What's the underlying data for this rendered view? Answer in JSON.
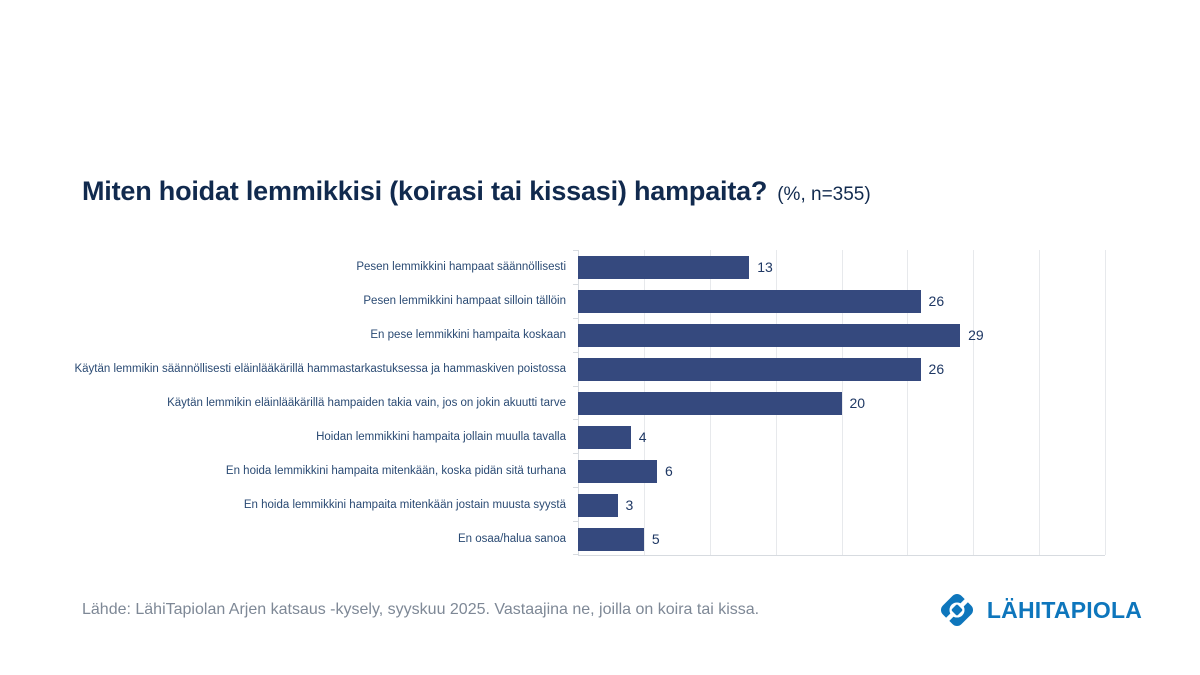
{
  "chart_data": {
    "type": "bar",
    "orientation": "horizontal",
    "title": "Miten hoidat lemmikkisi (koirasi tai kissasi) hampaita?",
    "subtitle": "(%, n=355)",
    "categories": [
      "Pesen lemmikkini hampaat säännöllisesti",
      "Pesen lemmikkini hampaat silloin tällöin",
      "En pese lemmikkini hampaita koskaan",
      "Käytän lemmikin säännöllisesti eläinlääkärillä hammastarkastuksessa ja hammaskiven poistossa",
      "Käytän lemmikin eläinlääkärillä hampaiden takia vain, jos on jokin akuutti tarve",
      "Hoidan lemmikkini hampaita jollain muulla tavalla",
      "En hoida lemmikkini hampaita mitenkään, koska pidän sitä turhana",
      "En hoida lemmikkini hampaita mitenkään jostain muusta syystä",
      "En osaa/halua sanoa"
    ],
    "values": [
      13,
      26,
      29,
      26,
      20,
      4,
      6,
      3,
      5
    ],
    "xlabel": "",
    "ylabel": "",
    "xlim": [
      0,
      40
    ],
    "grid_step": 5,
    "grid": true,
    "legend": false,
    "value_labels": true
  },
  "footer": {
    "source": "Lähde: LähiTapiolan Arjen katsaus -kysely, syyskuu 2025. Vastaajina ne, joilla on koira tai kissa."
  },
  "logo": {
    "text": "LÄHITAPIOLA"
  },
  "colors": {
    "bar": "#35497E",
    "title": "#112A4E",
    "category_label": "#2A4A73",
    "value_label": "#1F3864",
    "grid": "#E7E9EC",
    "axis": "#D7DBE0",
    "footer": "#7E8896",
    "logo_blue": "#0E76BC",
    "background": "#FFFFFF"
  }
}
